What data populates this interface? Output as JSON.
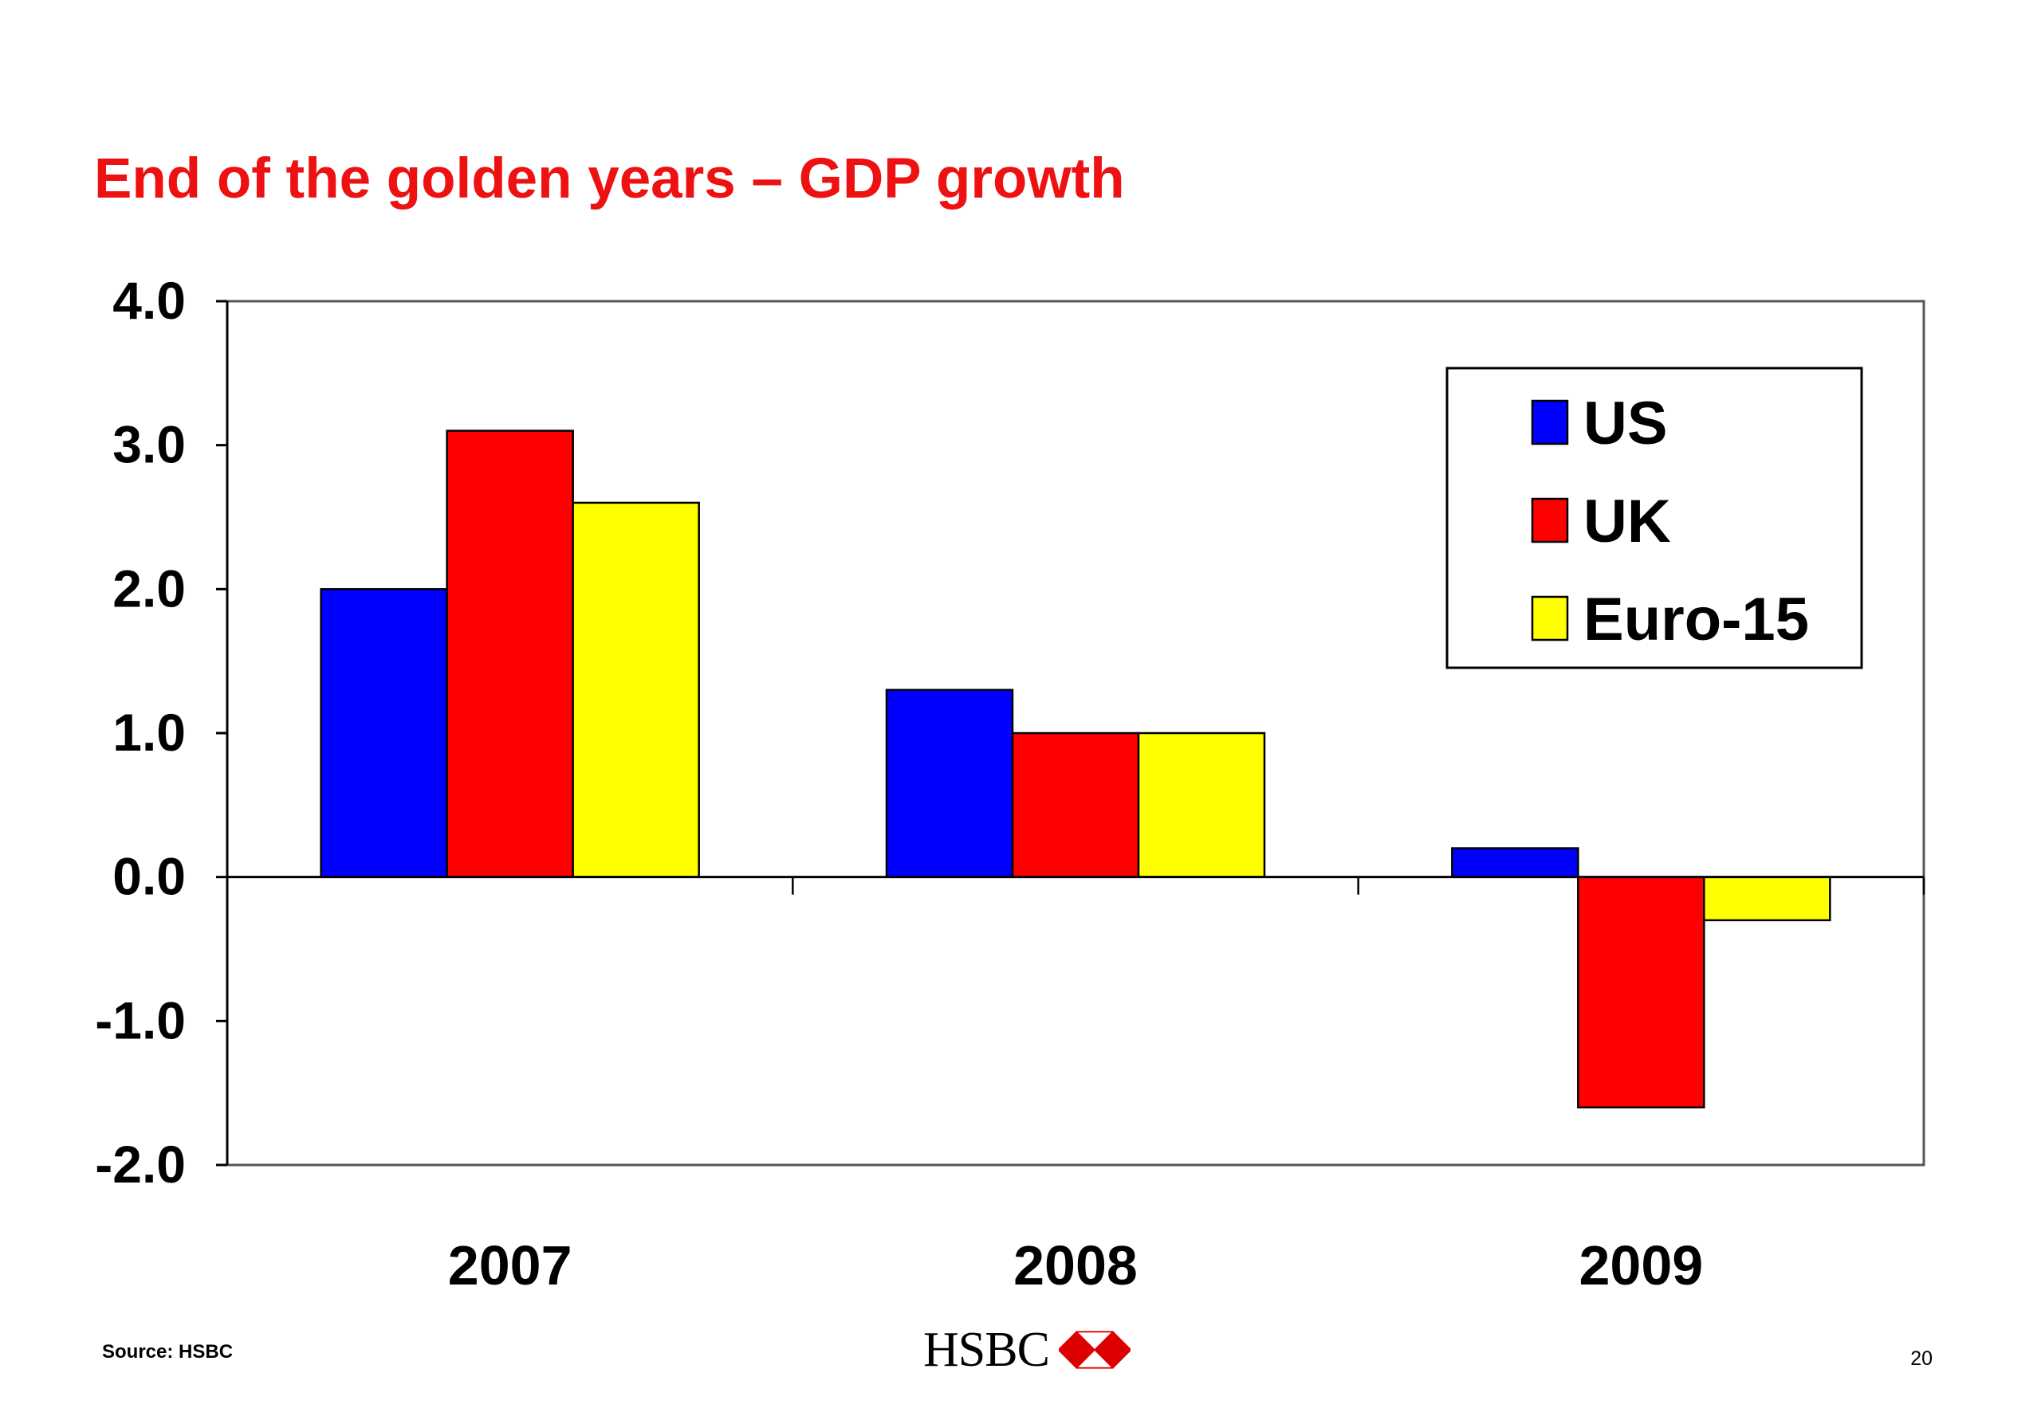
{
  "slide": {
    "title": "End of the golden years – GDP growth",
    "title_color": "#ee1111",
    "source": "Source: HSBC",
    "logo_text": "HSBC",
    "page_number": "20"
  },
  "chart_data": {
    "type": "bar",
    "categories": [
      "2007",
      "2008",
      "2009"
    ],
    "series": [
      {
        "name": "US",
        "color": "#0000ff",
        "values": [
          2.0,
          1.3,
          0.2
        ]
      },
      {
        "name": "UK",
        "color": "#ff0000",
        "values": [
          3.1,
          1.0,
          -1.6
        ]
      },
      {
        "name": "Euro-15",
        "color": "#ffff00",
        "values": [
          2.6,
          1.0,
          -0.3
        ]
      }
    ],
    "ylim": [
      -2.0,
      4.0
    ],
    "yticks": [
      "4.0",
      "3.0",
      "2.0",
      "1.0",
      "0.0",
      "-1.0",
      "-2.0"
    ],
    "grid": false,
    "legend_position": "top-right"
  }
}
